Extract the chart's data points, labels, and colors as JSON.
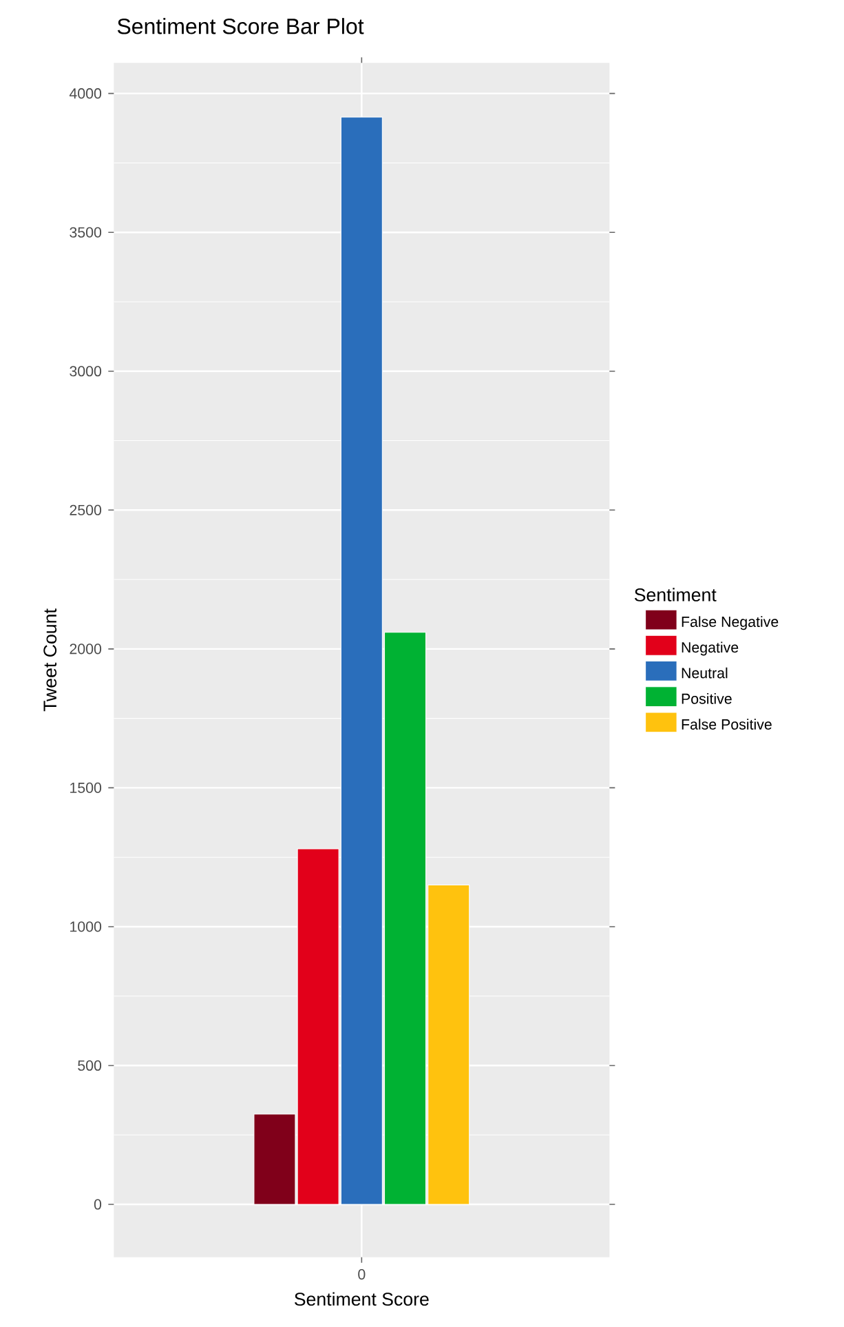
{
  "chart_data": {
    "type": "bar",
    "title": "Sentiment Score Bar Plot",
    "xlabel": "Sentiment Score",
    "ylabel": "Tweet Count",
    "legend_title": "Sentiment",
    "categories": [
      "0"
    ],
    "series": [
      {
        "name": "False Negative",
        "color": "#80001a",
        "values": [
          325
        ]
      },
      {
        "name": "Negative",
        "color": "#e2001a",
        "values": [
          1280
        ]
      },
      {
        "name": "Neutral",
        "color": "#2a6ebb",
        "values": [
          3915
        ]
      },
      {
        "name": "Positive",
        "color": "#00b233",
        "values": [
          2060
        ]
      },
      {
        "name": "False Positive",
        "color": "#ffc20e",
        "values": [
          1150
        ]
      }
    ],
    "ylim": [
      -190,
      4110
    ],
    "yticks": [
      0,
      500,
      1000,
      1500,
      2000,
      2500,
      3000,
      3500,
      4000
    ],
    "grid": true,
    "legend": "right"
  }
}
